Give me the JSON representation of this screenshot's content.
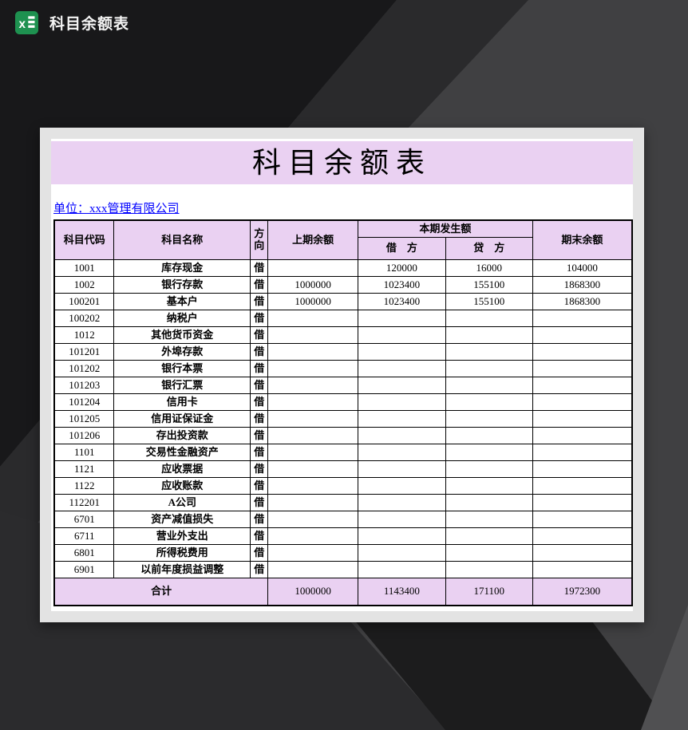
{
  "window": {
    "title": "科目余额表",
    "icon": "excel-icon"
  },
  "sheet": {
    "title": "科目余额表",
    "company_line": "单位：xxx管理有限公司"
  },
  "table": {
    "headers": {
      "code": "科目代码",
      "name": "科目名称",
      "direction": "方向",
      "prev_balance": "上期余额",
      "current_period": "本期发生额",
      "debit": "借　方",
      "credit": "贷　方",
      "ending_balance": "期末余额"
    },
    "rows": [
      {
        "code": "1001",
        "name": "库存现金",
        "direction": "借",
        "prev": "",
        "debit": "120000",
        "credit": "16000",
        "ending": "104000"
      },
      {
        "code": "1002",
        "name": "银行存款",
        "direction": "借",
        "prev": "1000000",
        "debit": "1023400",
        "credit": "155100",
        "ending": "1868300"
      },
      {
        "code": "100201",
        "name": "基本户",
        "direction": "借",
        "prev": "1000000",
        "debit": "1023400",
        "credit": "155100",
        "ending": "1868300"
      },
      {
        "code": "100202",
        "name": "纳税户",
        "direction": "借",
        "prev": "",
        "debit": "",
        "credit": "",
        "ending": ""
      },
      {
        "code": "1012",
        "name": "其他货币资金",
        "direction": "借",
        "prev": "",
        "debit": "",
        "credit": "",
        "ending": ""
      },
      {
        "code": "101201",
        "name": "外埠存款",
        "direction": "借",
        "prev": "",
        "debit": "",
        "credit": "",
        "ending": ""
      },
      {
        "code": "101202",
        "name": "银行本票",
        "direction": "借",
        "prev": "",
        "debit": "",
        "credit": "",
        "ending": ""
      },
      {
        "code": "101203",
        "name": "银行汇票",
        "direction": "借",
        "prev": "",
        "debit": "",
        "credit": "",
        "ending": ""
      },
      {
        "code": "101204",
        "name": "信用卡",
        "direction": "借",
        "prev": "",
        "debit": "",
        "credit": "",
        "ending": ""
      },
      {
        "code": "101205",
        "name": "信用证保证金",
        "direction": "借",
        "prev": "",
        "debit": "",
        "credit": "",
        "ending": ""
      },
      {
        "code": "101206",
        "name": "存出投资款",
        "direction": "借",
        "prev": "",
        "debit": "",
        "credit": "",
        "ending": ""
      },
      {
        "code": "1101",
        "name": "交易性金融资产",
        "direction": "借",
        "prev": "",
        "debit": "",
        "credit": "",
        "ending": ""
      },
      {
        "code": "1121",
        "name": "应收票据",
        "direction": "借",
        "prev": "",
        "debit": "",
        "credit": "",
        "ending": ""
      },
      {
        "code": "1122",
        "name": "应收账款",
        "direction": "借",
        "prev": "",
        "debit": "",
        "credit": "",
        "ending": ""
      },
      {
        "code": "112201",
        "name": "A公司",
        "direction": "借",
        "prev": "",
        "debit": "",
        "credit": "",
        "ending": ""
      },
      {
        "code": "6701",
        "name": "资产减值损失",
        "direction": "借",
        "prev": "",
        "debit": "",
        "credit": "",
        "ending": ""
      },
      {
        "code": "6711",
        "name": "营业外支出",
        "direction": "借",
        "prev": "",
        "debit": "",
        "credit": "",
        "ending": ""
      },
      {
        "code": "6801",
        "name": "所得税费用",
        "direction": "借",
        "prev": "",
        "debit": "",
        "credit": "",
        "ending": ""
      },
      {
        "code": "6901",
        "name": "以前年度损益调整",
        "direction": "借",
        "prev": "",
        "debit": "",
        "credit": "",
        "ending": ""
      }
    ],
    "total": {
      "label": "合计",
      "prev": "1000000",
      "debit": "1143400",
      "credit": "171100",
      "ending": "1972300"
    }
  },
  "colors": {
    "banner_purple": "#EAD1F2",
    "link_blue": "#0000FF",
    "excel_green": "#1E9150",
    "card_frame": "#E3E3E3",
    "bg_base": "#404042",
    "bg_dark": "#18181A"
  }
}
